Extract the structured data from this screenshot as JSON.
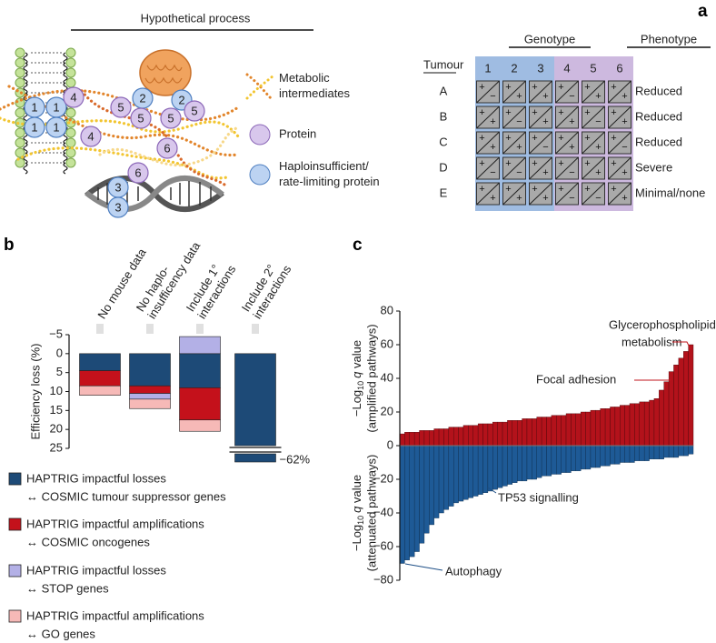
{
  "panel_labels": [
    "a",
    "b",
    "c"
  ],
  "diagram": {
    "title": "Hypothetical process",
    "nodes": [
      {
        "label": "1",
        "kind": "haplo"
      },
      {
        "label": "1",
        "kind": "haplo"
      },
      {
        "label": "1",
        "kind": "haplo"
      },
      {
        "label": "1",
        "kind": "haplo"
      },
      {
        "label": "4",
        "kind": "protein"
      },
      {
        "label": "5",
        "kind": "protein"
      },
      {
        "label": "2",
        "kind": "haplo"
      },
      {
        "label": "5",
        "kind": "protein"
      },
      {
        "label": "2",
        "kind": "haplo"
      },
      {
        "label": "5",
        "kind": "protein"
      },
      {
        "label": "5",
        "kind": "protein"
      },
      {
        "label": "4",
        "kind": "protein"
      },
      {
        "label": "6",
        "kind": "protein"
      },
      {
        "label": "3",
        "kind": "haplo"
      },
      {
        "label": "6",
        "kind": "protein"
      },
      {
        "label": "3",
        "kind": "haplo"
      }
    ],
    "legend": [
      {
        "kind": "metabolite",
        "lines": [
          "Metabolic",
          "intermediates"
        ]
      },
      {
        "kind": "protein",
        "lines": [
          "Protein"
        ]
      },
      {
        "kind": "haplo",
        "lines": [
          "Haploinsufficient/",
          "rate-limiting protein"
        ]
      }
    ]
  },
  "table": {
    "corner": "Tumour",
    "groups": [
      "Genotype",
      "Phenotype"
    ],
    "columns": [
      "1",
      "2",
      "3",
      "4",
      "5",
      "6"
    ],
    "rows": [
      {
        "label": "A",
        "cells": [
          [
            "+",
            "−"
          ],
          [
            "+",
            "+"
          ],
          [
            "+",
            "+"
          ],
          [
            "+",
            "−"
          ],
          [
            "+",
            "+"
          ],
          [
            "+",
            "+"
          ]
        ],
        "phenotype": "Reduced"
      },
      {
        "label": "B",
        "cells": [
          [
            "+",
            "+"
          ],
          [
            "+",
            "−"
          ],
          [
            "+",
            "+"
          ],
          [
            "+",
            "+"
          ],
          [
            "+",
            "−"
          ],
          [
            "+",
            "+"
          ]
        ],
        "phenotype": "Reduced"
      },
      {
        "label": "C",
        "cells": [
          [
            "+",
            "+"
          ],
          [
            "+",
            "+"
          ],
          [
            "+",
            "−"
          ],
          [
            "+",
            "+"
          ],
          [
            "+",
            "+"
          ],
          [
            "+",
            "−"
          ]
        ],
        "phenotype": "Reduced"
      },
      {
        "label": "D",
        "cells": [
          [
            "+",
            "−"
          ],
          [
            "+",
            "−"
          ],
          [
            "+",
            "+"
          ],
          [
            "+",
            "−"
          ],
          [
            "+",
            "+"
          ],
          [
            "+",
            "+"
          ]
        ],
        "phenotype": "Severe"
      },
      {
        "label": "E",
        "cells": [
          [
            "+",
            "+"
          ],
          [
            "+",
            "+"
          ],
          [
            "+",
            "+"
          ],
          [
            "+",
            "−"
          ],
          [
            "+",
            "−"
          ],
          [
            "+",
            "+"
          ]
        ],
        "phenotype": "Minimal/none"
      }
    ]
  },
  "chart_data": [
    {
      "type": "stacked_bar",
      "ylabel": "Efficiency loss (%)",
      "categories": [
        [
          "No mouse data"
        ],
        [
          "No haplo-",
          "insufficency data"
        ],
        [
          "Include 1°",
          "interactions"
        ],
        [
          "Include 2°",
          "interactions"
        ]
      ],
      "ylim": [
        -5,
        25
      ],
      "yticks": [
        {
          "value": -5,
          "label": "−5"
        },
        0,
        5,
        10,
        15,
        20,
        25
      ],
      "inverted": true,
      "axis_break": true,
      "series": [
        {
          "name": "HAPTRIG impactful losses",
          "pair": "↔ COSMIC tumour suppressor genes",
          "color": "#1d4a77",
          "values": [
            4.5,
            8.5,
            9,
            62
          ]
        },
        {
          "name": "HAPTRIG impactful amplifications",
          "pair": "↔ COSMIC oncogenes",
          "color": "#c4111b",
          "values": [
            4,
            2,
            8.5,
            null
          ]
        },
        {
          "name": "HAPTRIG impactful losses",
          "pair": "↔ STOP genes",
          "color": "#b3b0e6",
          "values": [
            null,
            1.5,
            -4.5,
            null
          ]
        },
        {
          "name": "HAPTRIG impactful amplifications",
          "pair": "↔ GO genes",
          "color": "#f6b9b7",
          "values": [
            2.5,
            2.5,
            3,
            null
          ]
        }
      ],
      "annotations": [
        "−62%"
      ]
    },
    {
      "type": "waterfall",
      "ylabel_top": {
        "prefix": "−Log",
        "sub": "10",
        "q": "q",
        "suffix": " value",
        "line2": "(amplified pathways)"
      },
      "ylabel_bottom": {
        "prefix": "−Log",
        "sub": "10",
        "q": "q",
        "suffix": " value",
        "line2": "(attenuated pathways)"
      },
      "ylim": [
        -80,
        80
      ],
      "yticks": [
        {
          "value": -80,
          "label": "−80"
        },
        {
          "value": -60,
          "label": "−60"
        },
        {
          "value": -40,
          "label": "−40"
        },
        {
          "value": -20,
          "label": "−20"
        },
        0,
        20,
        40,
        60,
        80
      ],
      "series": [
        {
          "color": "#b3121b",
          "values": [
            7,
            8,
            8,
            8,
            9,
            9,
            9,
            10,
            10,
            10,
            11,
            11,
            11,
            12,
            12,
            12,
            13,
            13,
            13,
            14,
            14,
            14,
            15,
            15,
            15,
            16,
            16,
            16,
            17,
            17,
            17,
            18,
            18,
            18,
            19,
            19,
            19,
            20,
            20,
            21,
            21,
            22,
            22,
            23,
            23,
            24,
            24,
            25,
            25,
            26,
            26,
            27,
            28,
            33,
            38,
            44,
            48,
            52,
            56,
            60
          ]
        },
        {
          "color": "#1e5a96",
          "values": [
            -70,
            -68,
            -66,
            -63,
            -58,
            -52,
            -47,
            -43,
            -40,
            -38,
            -36,
            -34,
            -33,
            -32,
            -31,
            -30,
            -29,
            -28,
            -27,
            -26,
            -25,
            -24,
            -23,
            -22,
            -21,
            -21,
            -20,
            -20,
            -19,
            -18,
            -18,
            -17,
            -17,
            -16,
            -16,
            -15,
            -15,
            -14,
            -14,
            -13,
            -13,
            -12,
            -12,
            -11,
            -11,
            -10,
            -10,
            -10,
            -9,
            -9,
            -9,
            -8,
            -8,
            -8,
            -7,
            -7,
            -7,
            -6,
            -6,
            -5
          ]
        }
      ],
      "annotations": [
        "Glycerophospholipid",
        "metabolism",
        "Focal adhesion",
        "TP53 signalling",
        "Autophagy"
      ]
    }
  ]
}
